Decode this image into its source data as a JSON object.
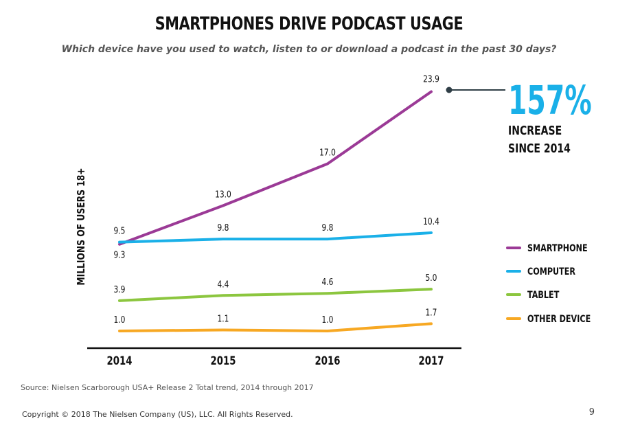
{
  "title": "SMARTPHONES DRIVE PODCAST USAGE",
  "subtitle": "Which device have you used to watch, listen to or download a podcast in the past 30 days?",
  "callout": {
    "value": "157%",
    "line1": "INCREASE",
    "line2": "SINCE 2014"
  },
  "footer": {
    "source": "Source: Nielsen Scarborough USA+ Release 2 Total trend, 2014 through 2017",
    "copyright": "Copyright © 2018 The Nielsen Company (US), LLC. All Rights Reserved.",
    "page": "9"
  },
  "chart_data": {
    "type": "line",
    "x": [
      "2014",
      "2015",
      "2016",
      "2017"
    ],
    "ylabel": "MILLIONS OF USERS 18+",
    "xlabel": "",
    "ylim": [
      0,
      24
    ],
    "grid": false,
    "legend_position": "right",
    "series": [
      {
        "name": "SMARTPHONE",
        "color": "#9b3a96",
        "values": [
          9.3,
          13.0,
          17.0,
          23.9
        ],
        "labels": [
          "9.3",
          "13.0",
          "17.0",
          "23.9"
        ]
      },
      {
        "name": "COMPUTER",
        "color": "#1ab0e8",
        "values": [
          9.5,
          9.8,
          9.8,
          10.4
        ],
        "labels": [
          "9.5",
          "9.8",
          "9.8",
          "10.4"
        ]
      },
      {
        "name": "TABLET",
        "color": "#8cc63f",
        "values": [
          3.9,
          4.4,
          4.6,
          5.0
        ],
        "labels": [
          "3.9",
          "4.4",
          "4.6",
          "5.0"
        ]
      },
      {
        "name": "OTHER DEVICE",
        "color": "#f7a823",
        "values": [
          1.0,
          1.1,
          1.0,
          1.7
        ],
        "labels": [
          "1.0",
          "1.1",
          "1.0",
          "1.7"
        ]
      }
    ],
    "callout_color": "#1ab0e8"
  }
}
